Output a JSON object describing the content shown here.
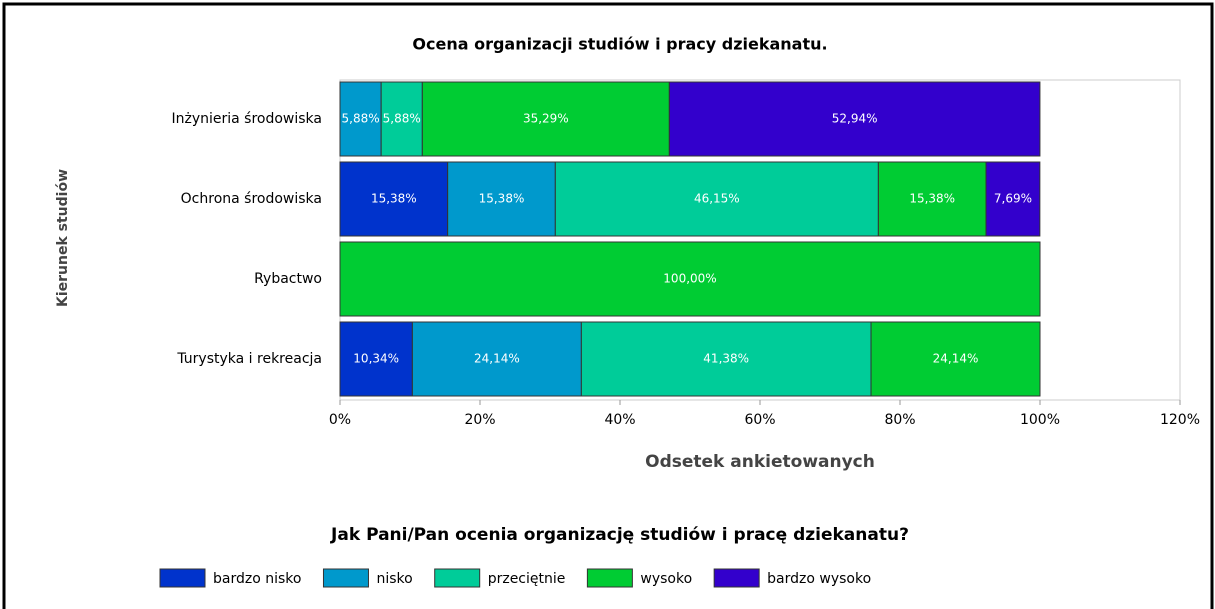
{
  "chart_data": {
    "type": "stacked-barh",
    "title": "Ocena organizacji studiów i pracy dziekanatu.",
    "x_label": "Odsetek ankietowanych",
    "y_label": "Kierunek studiów",
    "legend_title": "Jak Pani/Pan ocenia organizację studiów i pracę dziekanatu?",
    "categories": [
      "Inżynieria środowiska",
      "Ochrona środowiska",
      "Rybactwo",
      "Turystyka i rekreacja"
    ],
    "series": [
      {
        "name": "bardzo nisko",
        "color": "#0033cc",
        "values": [
          null,
          15.38,
          null,
          10.34
        ],
        "value_labels": [
          null,
          "15,38%",
          null,
          "10,34%"
        ]
      },
      {
        "name": "nisko",
        "color": "#0099cc",
        "values": [
          5.88,
          15.38,
          null,
          24.14
        ],
        "value_labels": [
          "5,88%",
          "15,38%",
          null,
          "24,14%"
        ]
      },
      {
        "name": "przeciętnie",
        "color": "#00cc99",
        "values": [
          5.88,
          46.15,
          null,
          41.38
        ],
        "value_labels": [
          "5,88%",
          "46,15%",
          null,
          "41,38%"
        ]
      },
      {
        "name": "wysoko",
        "color": "#00cc33",
        "values": [
          35.29,
          15.38,
          100,
          24.14
        ],
        "value_labels": [
          "35,29%",
          "15,38%",
          "100,00%",
          "24,14%"
        ]
      },
      {
        "name": "bardzo wysoko",
        "color": "#3300cc",
        "values": [
          52.94,
          7.69,
          null,
          null
        ],
        "value_labels": [
          "52,94%",
          "7,69%",
          null,
          null
        ]
      }
    ],
    "xlim": [
      0,
      120
    ],
    "xticks": [
      {
        "value": 0,
        "label": "0%"
      },
      {
        "value": 20,
        "label": "20%"
      },
      {
        "value": 40,
        "label": "40%"
      },
      {
        "value": 60,
        "label": "60%"
      },
      {
        "value": 80,
        "label": "80%"
      },
      {
        "value": 100,
        "label": "100%"
      },
      {
        "value": 120,
        "label": "120%"
      }
    ]
  }
}
